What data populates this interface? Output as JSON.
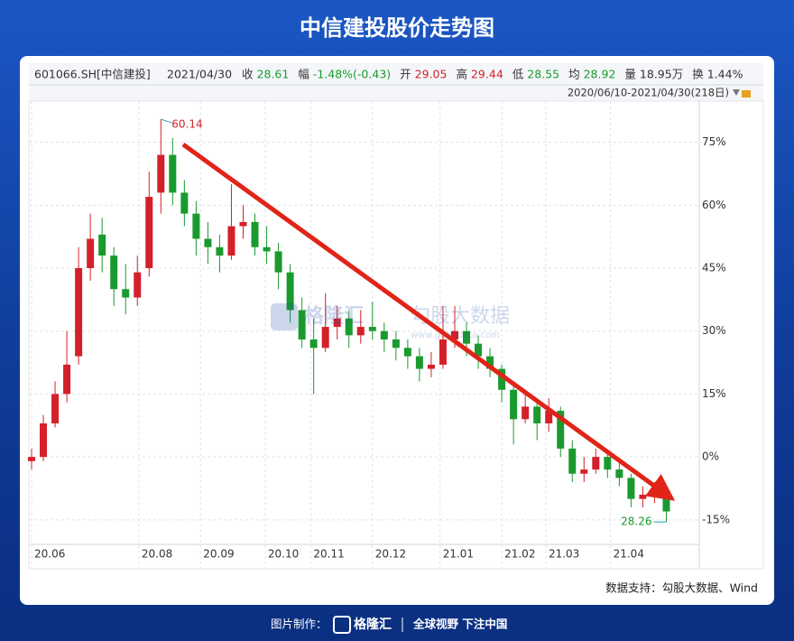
{
  "title": "中信建投股价走势图",
  "header": {
    "code": "601066.SH[中信建投]",
    "date": "2021/04/30",
    "items": [
      {
        "label": "收",
        "value": "28.61",
        "color": "#1a9a2e"
      },
      {
        "label": "幅",
        "value": "-1.48%(-0.43)",
        "color": "#1a9a2e"
      },
      {
        "label": "开",
        "value": "29.05",
        "color": "#d4202a"
      },
      {
        "label": "高",
        "value": "29.44",
        "color": "#d4202a"
      },
      {
        "label": "低",
        "value": "28.55",
        "color": "#1a9a2e"
      },
      {
        "label": "均",
        "value": "28.92",
        "color": "#1a9a2e"
      },
      {
        "label": "量",
        "value": "18.95万",
        "color": "#333333"
      },
      {
        "label": "换",
        "value": "1.44%",
        "color": "#333333"
      }
    ],
    "range": "2020/06/10-2021/04/30(218日)"
  },
  "chart_data": {
    "type": "candlestick",
    "x": [
      0,
      4,
      8,
      12,
      16,
      20,
      24,
      28,
      32,
      36,
      40,
      44,
      48,
      52,
      56,
      60,
      64,
      68,
      72,
      76,
      80,
      84,
      88,
      92,
      96,
      100,
      104,
      108,
      112,
      116,
      120,
      124,
      128,
      132,
      136,
      140,
      144,
      148,
      152,
      156,
      160,
      164,
      168,
      172,
      176,
      180,
      184,
      188,
      192,
      196,
      200,
      204,
      208,
      212,
      216
    ],
    "open": [
      -1,
      0,
      8,
      15,
      24,
      45,
      53,
      48,
      40,
      38,
      45,
      63,
      72,
      63,
      58,
      52,
      50,
      48,
      55,
      56,
      50,
      49,
      44,
      35,
      28,
      26,
      31,
      33,
      29,
      31,
      30,
      28,
      26,
      24,
      21,
      22,
      28,
      30,
      27,
      24,
      21,
      16,
      9,
      12,
      8,
      11,
      2,
      -4,
      -3,
      0,
      -3,
      -5,
      -10,
      -9,
      -8
    ],
    "high": [
      2,
      10,
      18,
      30,
      50,
      58,
      57,
      50,
      46,
      48,
      68,
      80.5,
      76,
      66,
      61,
      56,
      53,
      65,
      60,
      58,
      55,
      51,
      46,
      38,
      33,
      39,
      36,
      35,
      35,
      37,
      32,
      30,
      28,
      26,
      25,
      36,
      36,
      32,
      29,
      26,
      22,
      18,
      15,
      13,
      14,
      12,
      4,
      0,
      2,
      1,
      -1,
      -4,
      -7,
      -6,
      -8
    ],
    "low": [
      -3,
      -1,
      7,
      13,
      22,
      42,
      44,
      36,
      34,
      36,
      43,
      58,
      60,
      55,
      48,
      46,
      44,
      47,
      52,
      48,
      46,
      40,
      32,
      26,
      15,
      25,
      28,
      26,
      27,
      28,
      25,
      23,
      21,
      18,
      19,
      21,
      26,
      24,
      21,
      19,
      13,
      3,
      8,
      4,
      6,
      0,
      -6,
      -6,
      -4,
      -5,
      -7,
      -12,
      -12,
      -11,
      -15.5
    ],
    "close": [
      0,
      8,
      15,
      22,
      45,
      52,
      48,
      40,
      38,
      44,
      62,
      72,
      63,
      58,
      52,
      50,
      48,
      55,
      56,
      50,
      49,
      44,
      35,
      28,
      26,
      31,
      33,
      29,
      31,
      30,
      28,
      26,
      24,
      21,
      22,
      28,
      30,
      27,
      24,
      21,
      16,
      9,
      12,
      8,
      11,
      2,
      -4,
      -3,
      0,
      -3,
      -5,
      -10,
      -9,
      -8,
      -13
    ],
    "up_color": "#d4202a",
    "down_color": "#1a9a2e",
    "xlim": [
      0,
      218
    ],
    "xticks": [
      {
        "value": 0,
        "label": "20.06"
      },
      {
        "value": 36.5,
        "label": "20.08"
      },
      {
        "value": 57.5,
        "label": "20.09"
      },
      {
        "value": 79.5,
        "label": "20.10"
      },
      {
        "value": 95,
        "label": "20.11"
      },
      {
        "value": 116,
        "label": "20.12"
      },
      {
        "value": 139,
        "label": "21.01"
      },
      {
        "value": 160,
        "label": "21.02"
      },
      {
        "value": 175,
        "label": "21.03"
      },
      {
        "value": 197,
        "label": "21.04"
      }
    ],
    "ylim": [
      -20.2,
      84.6
    ],
    "yticks": [
      {
        "value": 75,
        "label": "75%"
      },
      {
        "value": 60,
        "label": "60%"
      },
      {
        "value": 45,
        "label": "45%"
      },
      {
        "value": 30,
        "label": "30%"
      },
      {
        "value": 15,
        "label": "15%"
      },
      {
        "value": 0,
        "label": "0%"
      },
      {
        "value": -15,
        "label": "-15%"
      }
    ],
    "grid": true,
    "max_label": "60.14",
    "min_label": "28.26"
  },
  "watermark": {
    "brand": "格隆汇",
    "sub": "勾股大数据",
    "url": "www.gogudata.com"
  },
  "source": "数据支持：勾股大数据、Wind",
  "footer": {
    "maker": "图片制作：",
    "brand": "格隆汇",
    "slogan": "全球视野 下注中国"
  }
}
